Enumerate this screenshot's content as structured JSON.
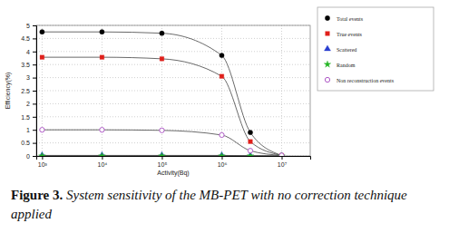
{
  "chart_data": {
    "type": "line",
    "title": "Figure 3. System sensitivity of the MB-PET with no correction technique applied",
    "x_label": "Activity(Bq)",
    "y_label": "Efficiency(%)",
    "x": [
      1000,
      10000,
      100000,
      1000000,
      3000000,
      10000000
    ],
    "series": [
      {
        "name": "Total events",
        "color": "#000000",
        "marker": "circle",
        "values": [
          4.75,
          4.75,
          4.7,
          3.85,
          0.9,
          0.02
        ]
      },
      {
        "name": "True events",
        "color": "#e0201b",
        "marker": "square",
        "values": [
          3.78,
          3.78,
          3.72,
          3.05,
          0.55,
          0.02
        ]
      },
      {
        "name": "Scattered",
        "color": "#2a3fd0",
        "marker": "triangle",
        "values": [
          0.02,
          0.02,
          0.02,
          0.02,
          0.01,
          0
        ]
      },
      {
        "name": "Random",
        "color": "#22b522",
        "marker": "star",
        "values": [
          0,
          0,
          0,
          0,
          0,
          0
        ]
      },
      {
        "name": "Non reconstruction events",
        "color": "#b05cc8",
        "marker": "open-circle",
        "values": [
          1.0,
          1.0,
          0.98,
          0.8,
          0.2,
          0.02
        ]
      }
    ],
    "log": "x",
    "xlim": [
      800,
      30000000
    ],
    "xticks": [
      {
        "value": 1000,
        "label": "10³"
      },
      {
        "value": 10000,
        "label": "10⁴"
      },
      {
        "value": 100000,
        "label": "10⁵"
      },
      {
        "value": 1000000,
        "label": "10⁶"
      },
      {
        "value": 10000000,
        "label": "10⁷"
      }
    ],
    "ylim": [
      0,
      5
    ],
    "yticks": [
      0,
      0.5,
      1,
      1.5,
      2,
      2.5,
      3,
      3.5,
      4,
      4.5,
      5
    ],
    "grid": true,
    "legend": "top-right"
  }
}
